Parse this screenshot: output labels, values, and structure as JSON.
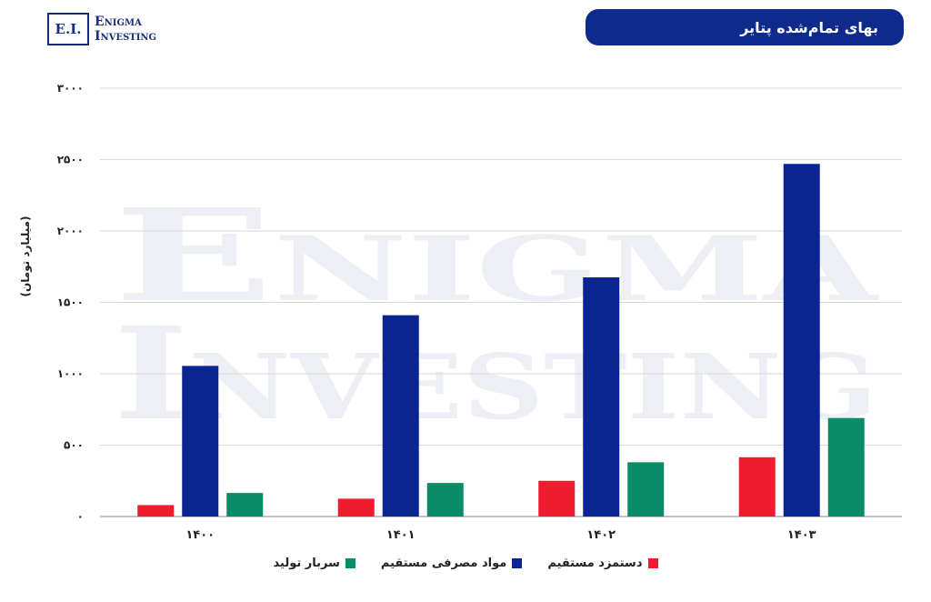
{
  "logo": {
    "mark": "E.I.",
    "line1": "Enigma",
    "line2": "Investing"
  },
  "title": "بهای تمام‌شده پتایر",
  "watermark": {
    "line1": "Enigma",
    "line2": "Investing"
  },
  "chart_data": {
    "type": "bar",
    "title": "بهای تمام‌شده پتایر",
    "ylabel": "(میلیارد تومان)",
    "xlabel": "",
    "ylim": [
      0,
      3000
    ],
    "yticks": [
      0,
      500,
      1000,
      1500,
      2000,
      2500,
      3000
    ],
    "ytick_labels": [
      "۰",
      "۵۰۰",
      "۱۰۰۰",
      "۱۵۰۰",
      "۲۰۰۰",
      "۲۵۰۰",
      "۳۰۰۰"
    ],
    "categories": [
      "۱۴۰۰",
      "۱۴۰۱",
      "۱۴۰۲",
      "۱۴۰۳"
    ],
    "grid": true,
    "legend_position": "bottom",
    "series": [
      {
        "name": "دستمزد مستقیم",
        "color": "#ee1c2e",
        "values": [
          80,
          125,
          250,
          415
        ]
      },
      {
        "name": "مواد مصرفی مستقیم",
        "color": "#0a2491",
        "values": [
          1055,
          1410,
          1675,
          2470
        ]
      },
      {
        "name": "سربار تولید",
        "color": "#0a8c68",
        "values": [
          165,
          235,
          380,
          690
        ]
      }
    ]
  }
}
